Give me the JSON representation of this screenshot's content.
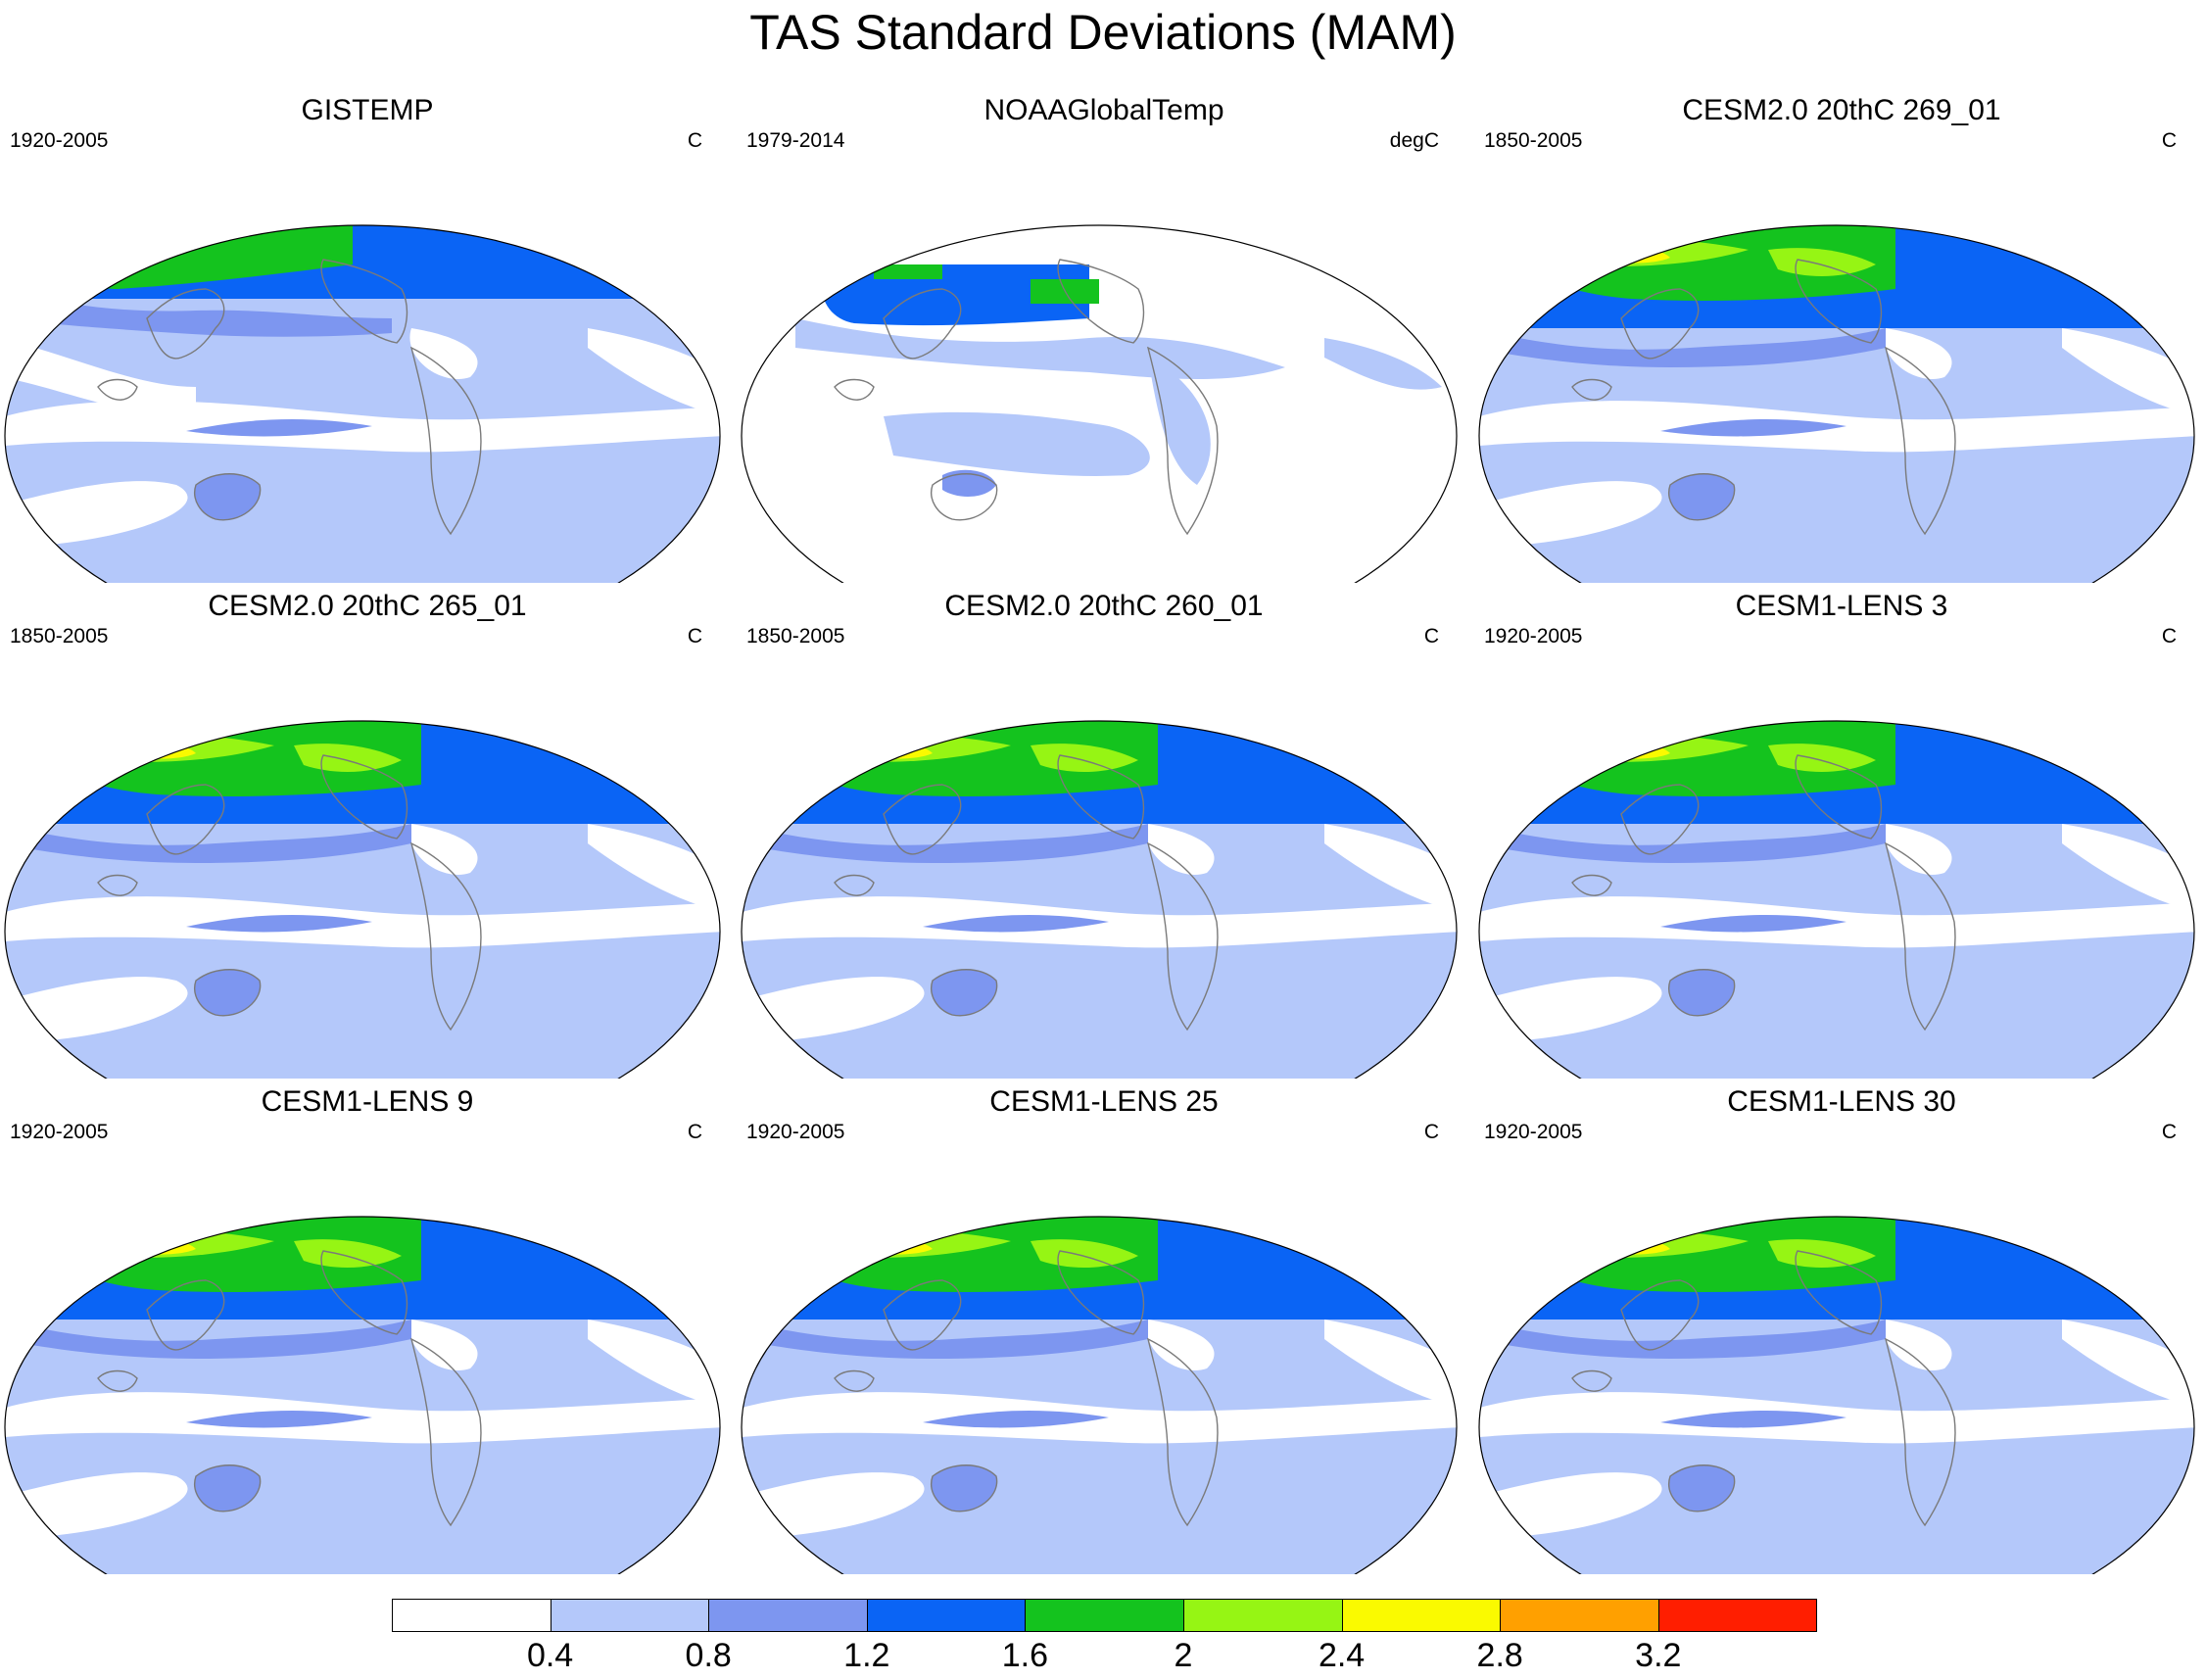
{
  "title": "TAS Standard Deviations (MAM)",
  "panels": [
    {
      "title": "GISTEMP",
      "left": "1920-2005",
      "right": "C"
    },
    {
      "title": "NOAAGlobalTemp",
      "left": "1979-2014",
      "right": "degC"
    },
    {
      "title": "CESM2.0 20thC 269_01",
      "left": "1850-2005",
      "right": "C"
    },
    {
      "title": "CESM2.0 20thC 265_01",
      "left": "1850-2005",
      "right": "C"
    },
    {
      "title": "CESM2.0 20thC 260_01",
      "left": "1850-2005",
      "right": "C"
    },
    {
      "title": "CESM1-LENS 3",
      "left": "1920-2005",
      "right": "C"
    },
    {
      "title": "CESM1-LENS 9",
      "left": "1920-2005",
      "right": "C"
    },
    {
      "title": "CESM1-LENS 25",
      "left": "1920-2005",
      "right": "C"
    },
    {
      "title": "CESM1-LENS 30",
      "left": "1920-2005",
      "right": "C"
    }
  ],
  "colorbar": {
    "colors": [
      "#ffffff",
      "#b4c8fa",
      "#7d96f0",
      "#0a64f5",
      "#14c31e",
      "#96f514",
      "#fafa00",
      "#ffa000",
      "#ff1e00"
    ],
    "labels": [
      "0.4",
      "0.8",
      "1.2",
      "1.6",
      "2",
      "2.4",
      "2.8",
      "3.2"
    ]
  }
}
